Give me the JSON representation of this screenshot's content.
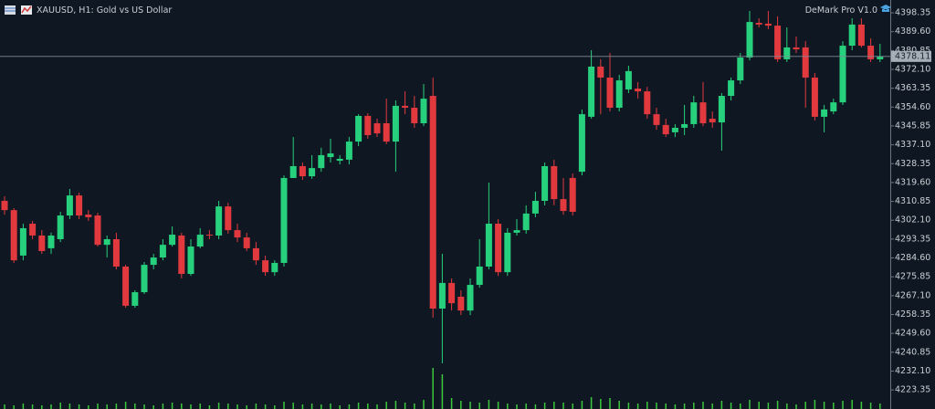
{
  "chart_data": {
    "type": "candlestick",
    "title": "XAUUSD, H1:  Gold vs US Dollar",
    "indicator": "DeMark Pro V1.0",
    "up_color": "#26d07c",
    "down_color": "#e2393f",
    "volume_color": "#3cc83c",
    "ylim": [
      4214.5,
      4404.3
    ],
    "yticks": [
      4398.35,
      {
        "value": 4389.6,
        "label": "4389.60"
      },
      4380.85,
      {
        "value": 4372.1,
        "label": "4372.10"
      },
      4363.35,
      {
        "value": 4354.6,
        "label": "4354.60"
      },
      4345.85,
      {
        "value": 4337.1,
        "label": "4337.10"
      },
      4328.35,
      {
        "value": 4319.6,
        "label": "4319.60"
      },
      4310.85,
      {
        "value": 4302.1,
        "label": "4302.10"
      },
      4293.35,
      {
        "value": 4284.6,
        "label": "4284.60"
      },
      4275.85,
      {
        "value": 4267.1,
        "label": "4267.10"
      },
      4258.35,
      {
        "value": 4249.6,
        "label": "4249.60"
      },
      4240.85,
      {
        "value": 4232.1,
        "label": "4232.10"
      },
      4223.35
    ],
    "current_price": 4378.11,
    "volume_ylim": [
      0,
      50
    ],
    "ohlc": [
      [
        4311.1,
        4313.2,
        4304.7,
        4306.8
      ],
      [
        4306.8,
        4307.7,
        4282.3,
        4283.5
      ],
      [
        4285.7,
        4300.5,
        4283.5,
        4298.4
      ],
      [
        4300.5,
        4301.8,
        4293.3,
        4295.0
      ],
      [
        4295.0,
        4297.5,
        4286.5,
        4287.8
      ],
      [
        4289.1,
        4296.3,
        4286.5,
        4295.0
      ],
      [
        4293.3,
        4306.0,
        4292.0,
        4304.3
      ],
      [
        4304.3,
        4316.6,
        4302.6,
        4313.6
      ],
      [
        4313.6,
        4314.9,
        4302.6,
        4304.3
      ],
      [
        4304.7,
        4306.8,
        4301.8,
        4303.5
      ],
      [
        4304.3,
        4305.6,
        4289.9,
        4290.7
      ],
      [
        4290.7,
        4295.0,
        4284.8,
        4293.3
      ],
      [
        4293.3,
        4296.3,
        4279.3,
        4280.6
      ],
      [
        4280.6,
        4281.4,
        4261.5,
        4262.4
      ],
      [
        4262.4,
        4269.6,
        4261.5,
        4268.7
      ],
      [
        4268.7,
        4282.7,
        4267.9,
        4281.4
      ],
      [
        4281.4,
        4286.5,
        4279.3,
        4284.8
      ],
      [
        4284.8,
        4293.3,
        4283.5,
        4290.7
      ],
      [
        4290.7,
        4299.2,
        4289.9,
        4295.4
      ],
      [
        4295.0,
        4296.3,
        4275.1,
        4277.2
      ],
      [
        4277.2,
        4293.3,
        4276.3,
        4289.9
      ],
      [
        4289.9,
        4298.4,
        4289.1,
        4295.4
      ],
      [
        4295.4,
        4297.5,
        4293.3,
        4295.0
      ],
      [
        4295.0,
        4311.1,
        4293.3,
        4308.5
      ],
      [
        4308.5,
        4310.2,
        4295.8,
        4297.5
      ],
      [
        4297.5,
        4300.5,
        4292.0,
        4294.1
      ],
      [
        4294.1,
        4296.3,
        4287.8,
        4289.1
      ],
      [
        4289.1,
        4292.0,
        4281.4,
        4283.5
      ],
      [
        4283.5,
        4285.7,
        4276.3,
        4278.0
      ],
      [
        4278.0,
        4283.5,
        4276.3,
        4282.3
      ],
      [
        4282.3,
        4322.9,
        4280.6,
        4321.7
      ],
      [
        4321.7,
        4340.7,
        4321.7,
        4327.2
      ],
      [
        4327.2,
        4328.9,
        4320.8,
        4322.5
      ],
      [
        4322.5,
        4332.3,
        4321.3,
        4326.3
      ],
      [
        4326.3,
        4335.7,
        4324.6,
        4332.3
      ],
      [
        4331.4,
        4339.9,
        4328.9,
        4333.1
      ],
      [
        4329.7,
        4332.3,
        4328.0,
        4330.6
      ],
      [
        4330.2,
        4340.7,
        4328.0,
        4338.6
      ],
      [
        4338.6,
        4351.3,
        4336.5,
        4350.5
      ],
      [
        4350.5,
        4351.8,
        4339.9,
        4341.6
      ],
      [
        4347.1,
        4349.2,
        4340.7,
        4342.4
      ],
      [
        4347.1,
        4358.5,
        4337.4,
        4338.6
      ],
      [
        4338.6,
        4357.7,
        4324.6,
        4355.2
      ],
      [
        4355.2,
        4361.9,
        4351.3,
        4354.3
      ],
      [
        4354.3,
        4359.8,
        4345.0,
        4347.1
      ],
      [
        4347.1,
        4365.3,
        4345.8,
        4358.5
      ],
      [
        4359.8,
        4368.3,
        4256.9,
        4261.1
      ],
      [
        4261.1,
        4286.5,
        4235.7,
        4273.0
      ],
      [
        4273.0,
        4275.1,
        4260.2,
        4263.6
      ],
      [
        4266.6,
        4269.6,
        4258.1,
        4260.2
      ],
      [
        4260.2,
        4275.1,
        4258.1,
        4272.1
      ],
      [
        4272.1,
        4293.3,
        4270.8,
        4280.6
      ],
      [
        4280.6,
        4319.6,
        4279.3,
        4300.5
      ],
      [
        4300.5,
        4302.6,
        4276.3,
        4278.0
      ],
      [
        4278.0,
        4298.4,
        4276.3,
        4296.3
      ],
      [
        4296.3,
        4302.6,
        4295.0,
        4297.5
      ],
      [
        4297.5,
        4309.0,
        4295.8,
        4305.2
      ],
      [
        4305.2,
        4315.3,
        4303.5,
        4311.1
      ],
      [
        4311.1,
        4328.9,
        4309.0,
        4327.2
      ],
      [
        4327.2,
        4330.2,
        4309.0,
        4311.9
      ],
      [
        4311.9,
        4321.7,
        4304.7,
        4306.4
      ],
      [
        4321.7,
        4323.8,
        4304.3,
        4306.0
      ],
      [
        4324.6,
        4353.5,
        4322.9,
        4351.3
      ],
      [
        4350.1,
        4381.0,
        4349.2,
        4373.4
      ],
      [
        4373.4,
        4376.8,
        4351.3,
        4368.3
      ],
      [
        4368.3,
        4379.7,
        4352.6,
        4354.3
      ],
      [
        4354.3,
        4369.6,
        4352.6,
        4367.0
      ],
      [
        4362.8,
        4373.8,
        4361.1,
        4371.3
      ],
      [
        4363.2,
        4366.2,
        4358.5,
        4361.9
      ],
      [
        4361.9,
        4364.0,
        4349.2,
        4351.3
      ],
      [
        4351.3,
        4354.3,
        4344.1,
        4346.3
      ],
      [
        4346.3,
        4349.2,
        4340.7,
        4342.0
      ],
      [
        4342.9,
        4346.7,
        4340.7,
        4345.0
      ],
      [
        4345.0,
        4355.6,
        4341.6,
        4346.7
      ],
      [
        4346.7,
        4359.8,
        4345.0,
        4356.8
      ],
      [
        4356.8,
        4366.2,
        4345.8,
        4347.1
      ],
      [
        4349.2,
        4352.6,
        4345.0,
        4347.5
      ],
      [
        4347.5,
        4361.1,
        4334.4,
        4359.8
      ],
      [
        4359.8,
        4368.3,
        4357.7,
        4367.0
      ],
      [
        4367.0,
        4379.7,
        4365.3,
        4377.6
      ],
      [
        4377.6,
        4399.2,
        4376.3,
        4394.1
      ],
      [
        4393.7,
        4395.8,
        4391.6,
        4392.9
      ],
      [
        4393.3,
        4399.2,
        4390.7,
        4392.4
      ],
      [
        4392.4,
        4396.7,
        4375.5,
        4376.8
      ],
      [
        4376.8,
        4391.6,
        4375.5,
        4382.3
      ],
      [
        4382.3,
        4387.4,
        4379.7,
        4381.4
      ],
      [
        4382.3,
        4385.2,
        4354.3,
        4368.3
      ],
      [
        4368.3,
        4370.4,
        4348.4,
        4350.1
      ],
      [
        4350.1,
        4355.6,
        4342.9,
        4353.5
      ],
      [
        4352.6,
        4358.5,
        4351.3,
        4356.8
      ],
      [
        4356.8,
        4385.2,
        4355.6,
        4383.1
      ],
      [
        4383.1,
        4395.8,
        4381.0,
        4392.9
      ],
      [
        4392.9,
        4395.8,
        4382.3,
        4383.1
      ],
      [
        4383.1,
        4386.5,
        4375.5,
        4376.8
      ],
      [
        4376.8,
        4384.0,
        4375.5,
        4378.0
      ]
    ],
    "volume": [
      5,
      4,
      6,
      5,
      4,
      5,
      7,
      6,
      5,
      4,
      6,
      5,
      6,
      8,
      6,
      5,
      4,
      6,
      7,
      6,
      5,
      6,
      4,
      7,
      6,
      5,
      4,
      6,
      5,
      4,
      8,
      7,
      5,
      6,
      5,
      6,
      4,
      5,
      7,
      6,
      5,
      8,
      9,
      7,
      6,
      10,
      45,
      38,
      12,
      9,
      8,
      7,
      10,
      8,
      6,
      5,
      6,
      5,
      7,
      8,
      7,
      6,
      9,
      13,
      11,
      12,
      9,
      7,
      6,
      8,
      7,
      6,
      5,
      6,
      7,
      8,
      6,
      9,
      7,
      6,
      10,
      8,
      7,
      9,
      6,
      5,
      8,
      10,
      8,
      7,
      9,
      10,
      8,
      7,
      6
    ]
  }
}
